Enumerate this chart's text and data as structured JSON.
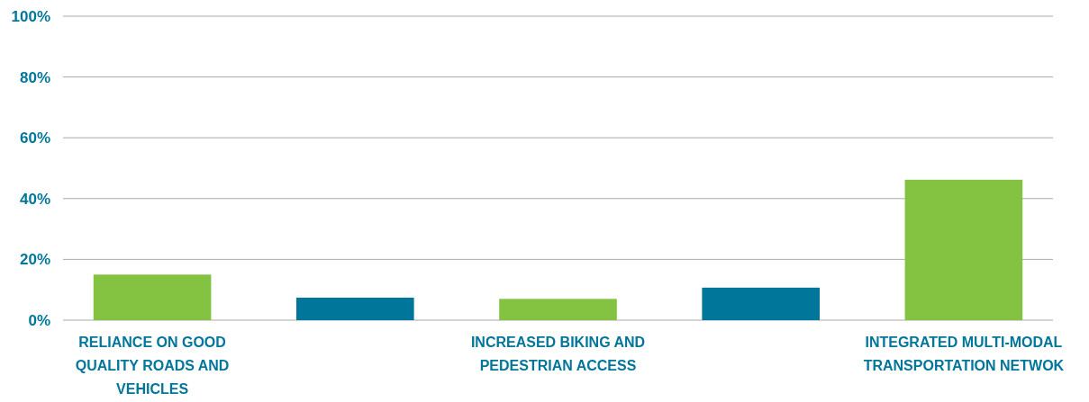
{
  "chart_data": {
    "type": "bar",
    "categories": [
      "RELIANCE ON GOOD QUALITY ROADS AND VEHICLES",
      null,
      "INCREASED BIKING AND PEDESTRIAN ACCESS",
      null,
      "INTEGRATED MULTI-MODAL TRANSPORTATION NETWOK"
    ],
    "values": [
      15,
      7.4,
      7,
      10.7,
      46.2
    ],
    "colors": [
      "#84c341",
      "#00769a",
      "#84c341",
      "#00769a",
      "#84c341"
    ],
    "ylim": [
      0,
      100
    ],
    "yticks": [
      {
        "value": 0,
        "label": "0%"
      },
      {
        "value": 20,
        "label": "20%"
      },
      {
        "value": 40,
        "label": "40%"
      },
      {
        "value": 60,
        "label": "60%"
      },
      {
        "value": 80,
        "label": "80%"
      },
      {
        "value": 100,
        "label": "100%"
      }
    ],
    "grid": "y"
  }
}
